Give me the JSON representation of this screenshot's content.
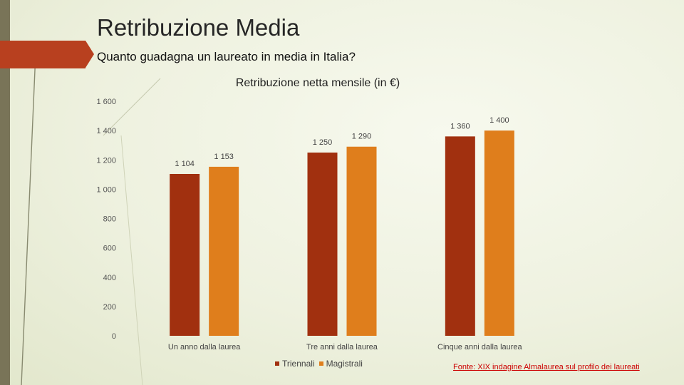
{
  "slide": {
    "title": "Retribuzione Media",
    "subtitle": "Quanto guadagna un laureato in media in Italia?",
    "source": "Fonte: XIX indagine Almalaurea sul profilo dei laureati",
    "colors": {
      "accent": "#b8401f",
      "left_bar": "#797458"
    }
  },
  "chart_data": {
    "type": "bar",
    "title": "Retribuzione netta mensile (in €)",
    "categories": [
      "Un anno dalla laurea",
      "Tre anni dalla laurea",
      "Cinque anni dalla laurea"
    ],
    "series": [
      {
        "name": "Triennali",
        "values": [
          1104,
          1250,
          1360
        ],
        "labels": [
          "1 104",
          "1 250",
          "1 360"
        ],
        "color": "#a1300f"
      },
      {
        "name": "Magistrali",
        "values": [
          1153,
          1290,
          1400
        ],
        "labels": [
          "1 153",
          "1 290",
          "1 400"
        ],
        "color": "#df7e1c"
      }
    ],
    "ylim": [
      0,
      1600
    ],
    "yticks": [
      0,
      200,
      400,
      600,
      800,
      1000,
      1200,
      1400,
      1600
    ],
    "ytick_labels": [
      "0",
      "200",
      "400",
      "600",
      "800",
      "1 000",
      "1 200",
      "1 400",
      "1 600"
    ],
    "legend_position": "bottom",
    "grid": false
  }
}
